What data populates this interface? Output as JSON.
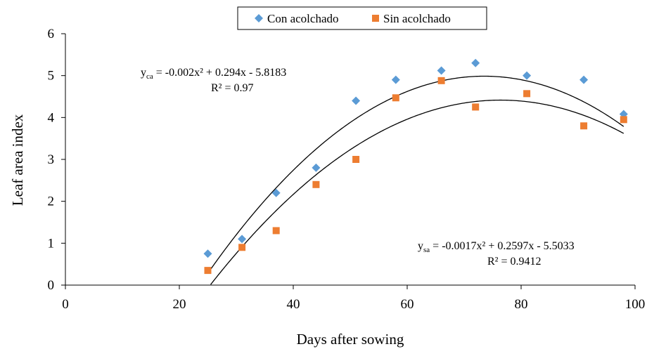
{
  "chart_data": {
    "type": "scatter",
    "xlabel": "Days after sowing",
    "ylabel": "Leaf area index",
    "xlim": [
      0,
      100
    ],
    "ylim": [
      0,
      6
    ],
    "xticks": [
      0,
      20,
      40,
      60,
      80,
      100
    ],
    "yticks": [
      0,
      1,
      2,
      3,
      4,
      5,
      6
    ],
    "grid": false,
    "legend_position": "top-center",
    "series": [
      {
        "name": "Con acolchado",
        "marker": "diamond",
        "color": "#5b9bd5",
        "x": [
          25,
          31,
          37,
          44,
          51,
          58,
          66,
          72,
          81,
          91,
          98
        ],
        "y": [
          0.75,
          1.1,
          2.2,
          2.8,
          4.4,
          4.9,
          5.12,
          5.3,
          5.0,
          4.9,
          4.08
        ],
        "trendline": {
          "type": "polynomial",
          "coefficients": [
            -0.002,
            0.294,
            -5.8183
          ],
          "x_range": [
            25,
            98
          ],
          "equation_prefix": "y",
          "equation_subscript": "ca",
          "equation_body": " = -0.002x² + 0.294x - 5.8183",
          "r2_label": "R² = 0.97"
        }
      },
      {
        "name": "Sin acolchado",
        "marker": "square",
        "color": "#ed7d31",
        "x": [
          25,
          31,
          37,
          44,
          51,
          58,
          66,
          72,
          81,
          91,
          98
        ],
        "y": [
          0.35,
          0.9,
          1.3,
          2.4,
          3.0,
          4.47,
          4.88,
          4.25,
          4.57,
          3.8,
          3.95
        ],
        "trendline": {
          "type": "polynomial",
          "coefficients": [
            -0.0017,
            0.2597,
            -5.5033
          ],
          "x_range": [
            25,
            98
          ],
          "equation_prefix": "y",
          "equation_subscript": "sa",
          "equation_body": " = -0.0017x² + 0.2597x - 5.5033",
          "r2_label": "R² = 0.9412"
        }
      }
    ]
  }
}
